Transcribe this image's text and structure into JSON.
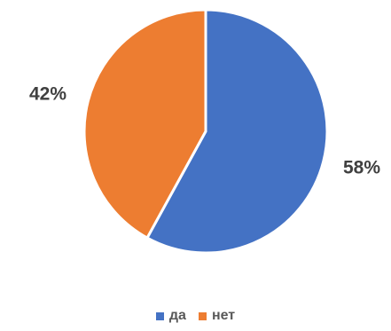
{
  "chart_data": {
    "type": "pie",
    "categories": [
      "да",
      "нет"
    ],
    "values": [
      58,
      42
    ],
    "labels": [
      "58%",
      "42%"
    ],
    "colors": [
      "#4472C4",
      "#ED7D31"
    ],
    "legend_position": "bottom",
    "start_angle": "top",
    "direction": "clockwise"
  }
}
